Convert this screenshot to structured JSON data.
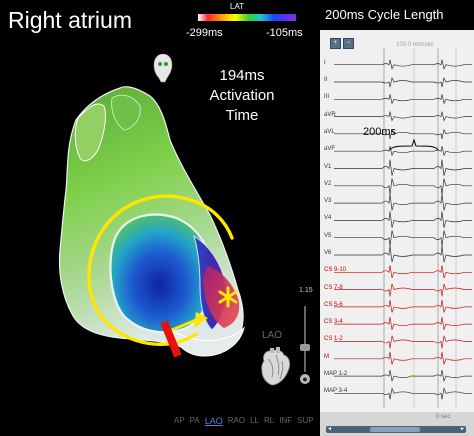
{
  "map": {
    "chamber_title": "Right atrium",
    "lat_title": "LAT",
    "lat_min": "-299ms",
    "lat_max": "-105ms",
    "activation": {
      "value": "194ms",
      "line1": "Activation",
      "line2": "Time"
    },
    "orientation_label": "LAO",
    "zoom_label": "1.15",
    "view_buttons": [
      "AP",
      "PA",
      "LAO",
      "RAO",
      "LL",
      "RL",
      "INF",
      "SUP"
    ],
    "active_view": "LAO",
    "colors": {
      "circuit_arrow": "#ffe600",
      "ablation_line": "#e81010",
      "marker": "#ffe600"
    },
    "icons": [
      "head-orientation-icon",
      "heart-orientation-icon",
      "asterisk-marker-icon",
      "arrowhead-icon"
    ]
  },
  "ecg": {
    "title": "200ms Cycle Length",
    "sweep_label": "100.0 mm/sec",
    "interval_label": "200ms",
    "leads": [
      "I",
      "II",
      "III",
      "aVR",
      "aVL",
      "aVF",
      "V1",
      "V2",
      "V3",
      "V4",
      "V5",
      "V6",
      "CS 9-10",
      "CS 7-8",
      "CS 5-6",
      "CS 3-4",
      "CS 1-2",
      "M",
      "MAP 1-2",
      "MAP 3-4"
    ],
    "time_label": "0 sec",
    "colors": {
      "surface_trace": "#333333",
      "cs_trace": "#d01010",
      "map_trace": "#333333",
      "cursor_line": "#7a7a7a"
    },
    "toolbar_icons": [
      "zoom-in-icon",
      "zoom-out-icon"
    ]
  }
}
